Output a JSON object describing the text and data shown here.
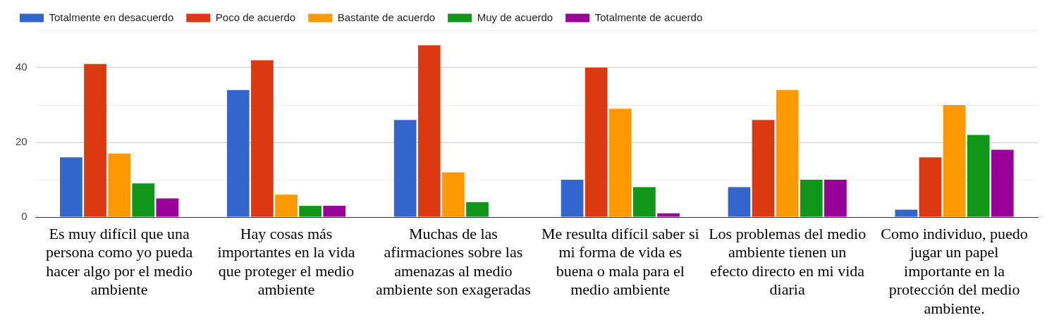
{
  "chart_data": {
    "type": "bar",
    "categories": [
      "Es muy difícil que una persona como yo pueda hacer algo por el medio ambiente",
      "Hay cosas más importantes en la vida que proteger el medio ambiente",
      "Muchas de las afirmaciones sobre las amenazas al medio ambiente son exageradas",
      "Me resulta difícil saber si mi forma de vida es buena o mala para el medio ambiente",
      "Los problemas del medio ambiente tienen un efecto directo en mi vida diaria",
      "Como individuo, puedo jugar un papel importante en la protección del medio ambiente."
    ],
    "series": [
      {
        "name": "Totalmente en desacuerdo",
        "color": "#3366cc",
        "values": [
          16,
          34,
          26,
          10,
          8,
          2
        ]
      },
      {
        "name": "Poco de acuerdo",
        "color": "#dc3912",
        "values": [
          41,
          42,
          46,
          40,
          26,
          16
        ]
      },
      {
        "name": "Bastante de acuerdo",
        "color": "#ff9900",
        "values": [
          17,
          6,
          12,
          29,
          34,
          30
        ]
      },
      {
        "name": "Muy de acuerdo",
        "color": "#109618",
        "values": [
          9,
          3,
          4,
          8,
          10,
          22
        ]
      },
      {
        "name": "Totalmente de acuerdo",
        "color": "#990099",
        "values": [
          5,
          3,
          0,
          1,
          10,
          18
        ]
      }
    ],
    "ylim": [
      0,
      50
    ],
    "yticks": [
      0,
      {
        "value": 10,
        "label": null
      },
      20,
      {
        "value": 30,
        "label": null
      },
      40,
      {
        "value": 50,
        "label": null
      }
    ],
    "grid": "y",
    "legend": "top"
  }
}
